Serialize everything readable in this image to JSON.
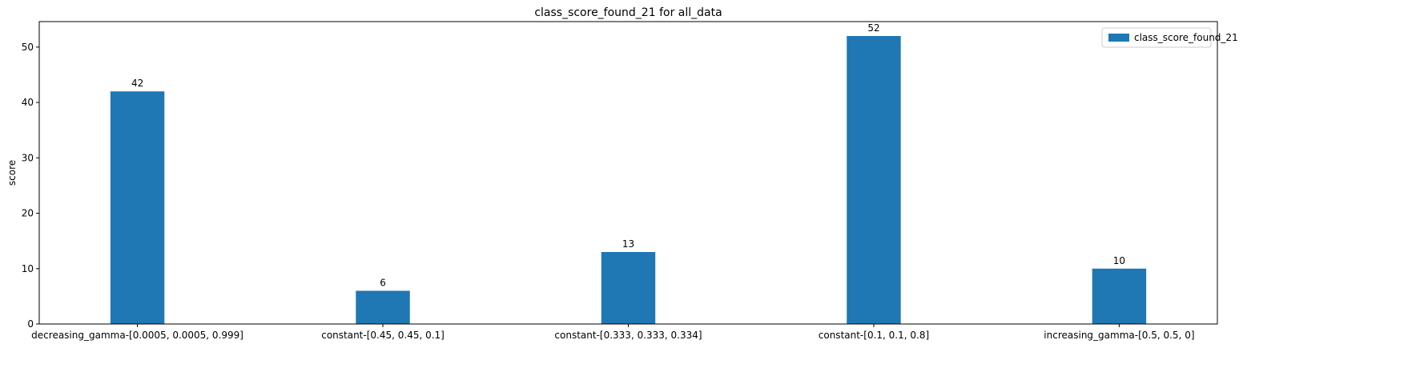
{
  "chart_data": {
    "type": "bar",
    "title": "class_score_found_21 for all_data",
    "xlabel": "",
    "ylabel": "score",
    "categories": [
      "decreasing_gamma-[0.0005, 0.0005, 0.999]",
      "constant-[0.45, 0.45, 0.1]",
      "constant-[0.333, 0.333, 0.334]",
      "constant-[0.1, 0.1, 0.8]",
      "increasing_gamma-[0.5, 0.5, 0]"
    ],
    "series": [
      {
        "name": "class_score_found_21",
        "values": [
          42,
          6,
          13,
          52,
          10
        ],
        "color": "#1f77b4"
      }
    ],
    "data_labels": [
      "42",
      "6",
      "13",
      "52",
      "10"
    ],
    "ylim": [
      0,
      54.6
    ],
    "yticks": [
      0,
      10,
      20,
      30,
      40,
      50
    ],
    "grid": false,
    "legend_position": "top-right"
  }
}
